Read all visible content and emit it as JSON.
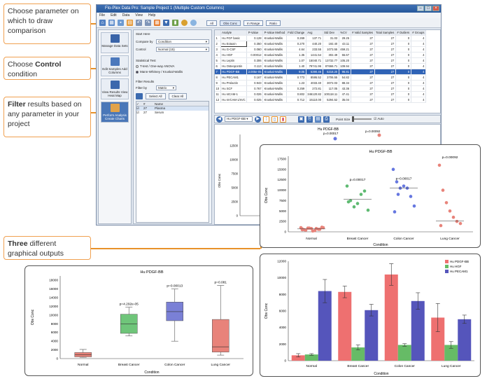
{
  "callouts": {
    "c1": {
      "text": "Choose parameter on which to draw comparison"
    },
    "c2": {
      "pre": "Choose ",
      "bold": "Control",
      "post": " condition"
    },
    "c3": {
      "bold": "Filter",
      "post": " results based on any parameter in your project"
    },
    "c4": {
      "bold": "Three",
      "post": " different graphical outputs"
    }
  },
  "window": {
    "title": "Flo-Plex Data Pro: Sample Project 1 (Multiple Custom Columns)",
    "menu": [
      "File",
      "Edit",
      "Data",
      "View",
      "Help"
    ],
    "toolbar_buttons": [
      "All",
      "Obs Conc",
      "In Range",
      "Ratio"
    ]
  },
  "nav": [
    {
      "label": "Manage Data Sets"
    },
    {
      "label": "Edit Samples Add Columns"
    },
    {
      "label": "View Results View Heat Map"
    },
    {
      "label": "Perform Analysis Create Charts"
    }
  ],
  "ctrl": {
    "start_here": "Start Here",
    "compare_by_label": "Compare by",
    "compare_by_value": "Condition",
    "control_label": "Control",
    "control_value": "Normal (15)",
    "stat_test": "Statistical Test",
    "test1": "T-test / One-way ANOVA",
    "test2": "Mann-Whitney / Kruskal-Wallis",
    "filter_results": "Filter Results",
    "filter_by_label": "Filter by",
    "filter_by_value": "Matrix",
    "select_all": "Select All",
    "clear_all": "Clear All",
    "list_headers": [
      "#",
      "Name"
    ],
    "list_rows": [
      {
        "n": "27",
        "name": "Plasma"
      },
      {
        "n": "27",
        "name": "Serum"
      }
    ]
  },
  "grid": {
    "headers": [
      "",
      "Analyte",
      "P-Value",
      "P-Value Method",
      "Fold Change",
      "Avg",
      "Std Dev",
      "%CV",
      "# Valid Samples",
      "Total Samples",
      "# Outliers",
      "# Groups"
    ],
    "rows": [
      [
        "1",
        "Hu FGF basic",
        "0.128",
        "Kruskal-Wallis",
        "0.269",
        "137.71",
        "31.03",
        "29.25",
        "27",
        "27",
        "0",
        "4"
      ],
      [
        "2",
        "Hu Eotaxin",
        "0.350",
        "Kruskal-Wallis",
        "0.270",
        "440.20",
        "192.40",
        "43.11",
        "27",
        "27",
        "0",
        "4"
      ],
      [
        "3",
        "Hu G-CSF",
        "0.060",
        "Kruskal-Wallis",
        "4.64",
        "233.55",
        "1073.55",
        "459.21",
        "27",
        "27",
        "0",
        "4"
      ],
      [
        "4",
        "Hu HGF",
        "0.00012",
        "Kruskal-Wallis",
        "1.35",
        "1441.54",
        "302.49",
        "55.67",
        "27",
        "27",
        "0",
        "4"
      ],
      [
        "5",
        "Hu Leptin",
        "0.306",
        "Kruskal-Wallis",
        "1.07",
        "15040.71",
        "13732.77",
        "105.20",
        "27",
        "27",
        "0",
        "4"
      ],
      [
        "6",
        "Hu Osteopontin",
        "0.113",
        "Kruskal-Wallis",
        "1.40",
        "79741.96",
        "87666.71",
        "109.94",
        "27",
        "27",
        "0",
        "4"
      ],
      [
        "7",
        "Hu PDGF-BB",
        "2.005e-05",
        "Kruskal-Wallis",
        "9.05",
        "5390.46",
        "5218.20",
        "96.81",
        "27",
        "27",
        "0",
        "4"
      ],
      [
        "8",
        "Hu PECAM1",
        "0.167",
        "Kruskal-Wallis",
        "0.773",
        "8595.52",
        "3706.55",
        "54.82",
        "27",
        "27",
        "0",
        "4"
      ],
      [
        "9",
        "Hu Prolactin",
        "0.943",
        "Kruskal-Wallis",
        "1.23",
        "4033.40",
        "3072.03",
        "88.34",
        "27",
        "27",
        "0",
        "4"
      ],
      [
        "10",
        "Hu SCF",
        "0.767",
        "Kruskal-Wallis",
        "0.259",
        "272.81",
        "117.05",
        "43.36",
        "27",
        "27",
        "0",
        "4"
      ],
      [
        "11",
        "Hu sICAM-1",
        "0.026",
        "Kruskal-Wallis",
        "0.802",
        "346120.82",
        "100118.11",
        "47.41",
        "27",
        "27",
        "0",
        "4"
      ],
      [
        "12",
        "Hu sVCAM-1/sVC",
        "0.025",
        "Kruskal-Wallis",
        "0.712",
        "15110.00",
        "5294.52",
        "35.04",
        "27",
        "27",
        "0",
        "4"
      ]
    ]
  },
  "chart_toolbar": {
    "analyte": "Hu PDGF-BB",
    "point_size": "Point Size",
    "auto": "Auto"
  },
  "dot_small": {
    "title": "Hu PDGF-BB",
    "ylabel": "Obs Conc",
    "p1": "p=0.00017",
    "p2": "p=0.00092",
    "ticks": [
      "0",
      "2500",
      "5000",
      "7500",
      "10000",
      "12500"
    ],
    "cat": "Normal"
  },
  "chart_data": [
    {
      "type": "scatter",
      "title": "Hu PDGF-BB",
      "xlabel": "Condition",
      "ylabel": "Obs Conc",
      "categories": [
        "Normal",
        "Breast Cancer",
        "Colon Cancer",
        "Lung Cancer"
      ],
      "annotations": [
        "p=0.00017",
        "p=0.00017",
        "p=0.00092"
      ],
      "ylim": [
        0,
        17500
      ],
      "yticks": [
        0,
        2500,
        5000,
        7500,
        10000,
        12500,
        15000,
        17500
      ],
      "series": [
        {
          "color": "#e8837a",
          "values": [
            1000,
            500,
            900,
            800,
            300,
            600,
            1100,
            700,
            400,
            900,
            200,
            800,
            600,
            1000,
            500
          ]
        },
        {
          "color": "#5fba72",
          "values": [
            11000,
            7500,
            6000,
            6800,
            9000,
            9800,
            5200,
            7200
          ]
        },
        {
          "color": "#6677e0",
          "values": [
            15000,
            12000,
            10500,
            11000,
            10500,
            8500,
            6200,
            4800,
            9000
          ]
        },
        {
          "color": "#e8837a",
          "values": [
            16000,
            10000,
            7000,
            5000,
            3500,
            2500,
            2000,
            1500
          ]
        }
      ],
      "medians": [
        700,
        7800,
        10500,
        2600
      ]
    },
    {
      "type": "box",
      "title": "Hu PDGF-BB",
      "xlabel": "Condition",
      "ylabel": "Obs Conc",
      "categories": [
        "Normal",
        "Breast Cancer",
        "Colon Cancer",
        "Lung Cancer"
      ],
      "annotations": [
        "",
        "p=4.292e-05",
        "p=0.00013",
        "p=0.081"
      ],
      "ylim": [
        0,
        19000
      ],
      "yticks": [
        0,
        2000,
        4000,
        6000,
        8000,
        10000,
        12000,
        14000,
        16000,
        18000
      ],
      "boxes": [
        {
          "min": 300,
          "q1": 400,
          "med": 900,
          "q3": 1400,
          "max": 2100,
          "color": "#e8837a"
        },
        {
          "min": 5200,
          "q1": 5800,
          "med": 8000,
          "q3": 10200,
          "max": 11800,
          "color": "#6fc57a"
        },
        {
          "min": 4000,
          "q1": 8700,
          "med": 10800,
          "q3": 13000,
          "max": 16000,
          "color": "#7a80d6"
        },
        {
          "min": 800,
          "q1": 1500,
          "med": 2700,
          "q3": 9000,
          "max": 16800,
          "color": "#e8837a"
        }
      ]
    },
    {
      "type": "bar",
      "xlabel": "Condition",
      "ylabel": "Obs Conc",
      "categories": [
        "Normal",
        "Breast Cancer",
        "Colon Cancer",
        "Lung Cancer"
      ],
      "ylim": [
        0,
        12000
      ],
      "yticks": [
        0,
        2000,
        4000,
        6000,
        8000,
        10000,
        12000
      ],
      "legend": "top-right",
      "series": [
        {
          "name": "Hu PDGF-BB",
          "color": "#ee7070",
          "values": [
            650,
            8300,
            10400,
            5200
          ],
          "err": [
            200,
            700,
            1300,
            1700
          ]
        },
        {
          "name": "Hu HGF",
          "color": "#66bb66",
          "values": [
            750,
            1600,
            1900,
            1900
          ],
          "err": [
            100,
            300,
            150,
            400
          ]
        },
        {
          "name": "Hu PECAM1",
          "color": "#5555bb",
          "values": [
            8400,
            6100,
            7200,
            5000
          ],
          "err": [
            1400,
            700,
            1000,
            500
          ]
        }
      ]
    }
  ]
}
